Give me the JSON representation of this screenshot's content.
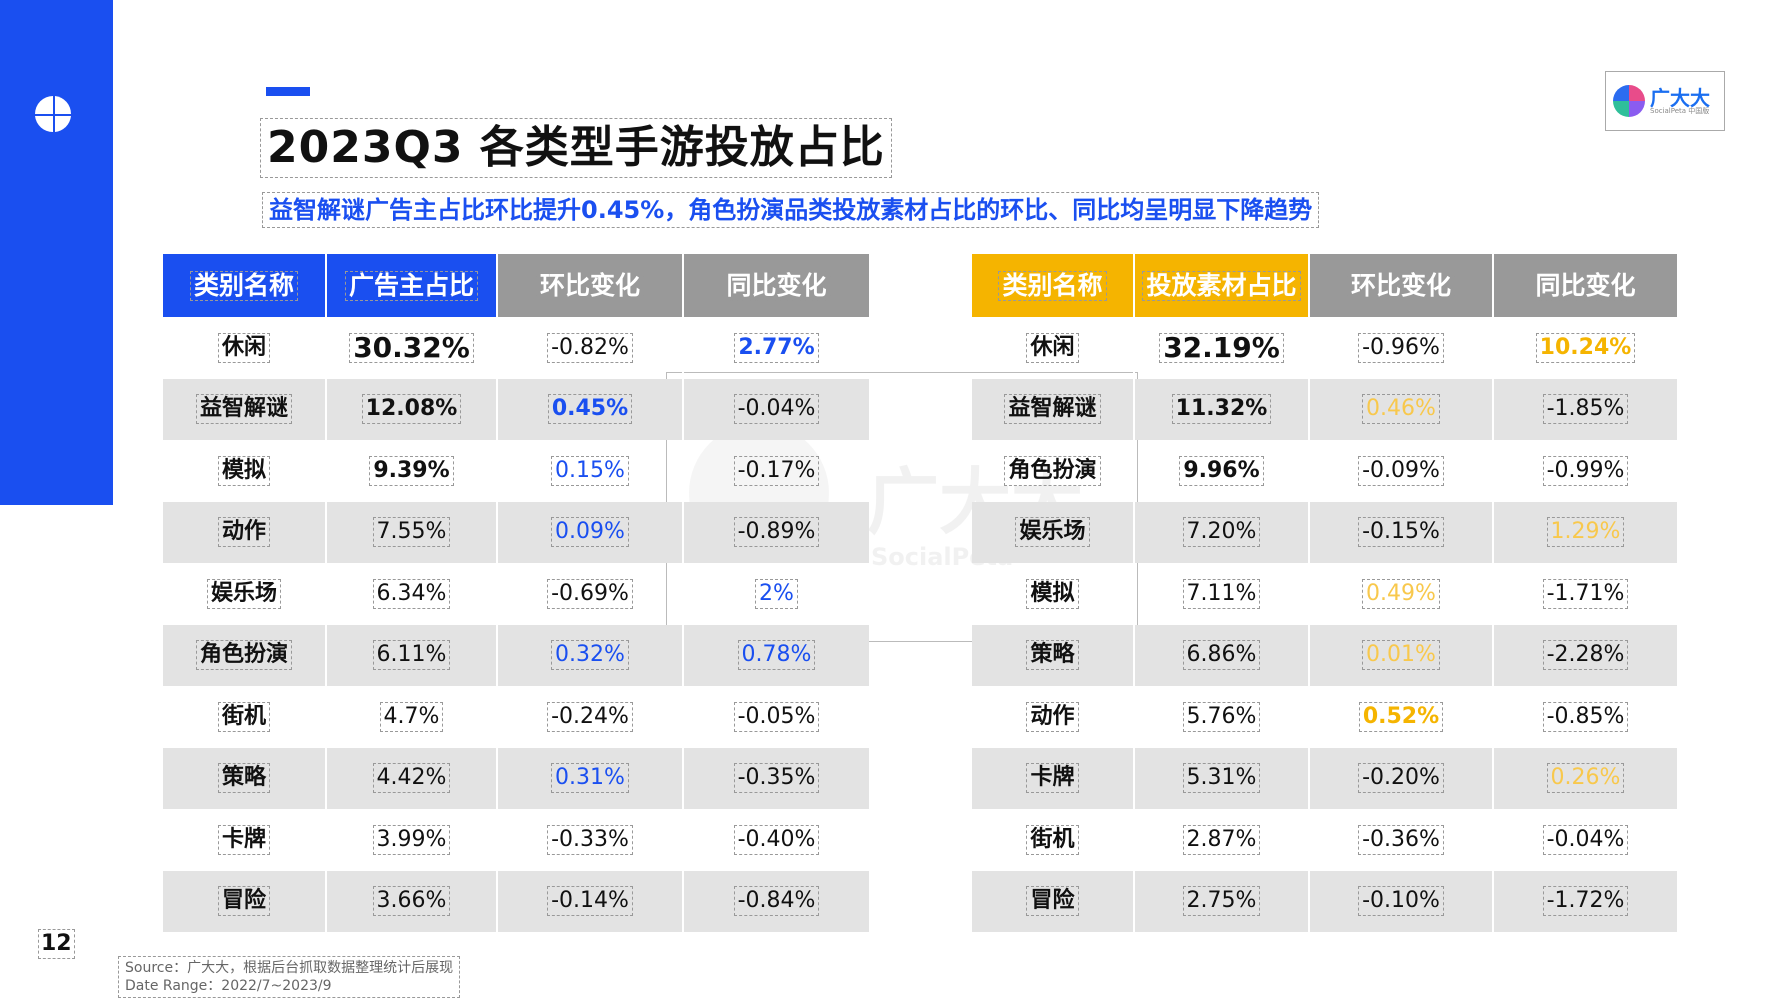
{
  "page": {
    "title": "2023Q3 各类型手游投放占比",
    "subtitle": "益智解谜广告主占比环比提升0.45%，角色扮演品类投放素材占比的环比、同比均呈明显下降趋势",
    "page_number": "12",
    "source_line1": "Source：广大大，根据后台抓取数据整理统计后展现",
    "source_line2": "Date Range：2022/7~2023/9",
    "brand_name": "广大大",
    "brand_sub": "SocialPeta 中国版",
    "watermark_text": "广大大",
    "watermark_sub": "SocialPeta"
  },
  "colors": {
    "accent_blue": "#1a4ff0",
    "accent_yellow": "#f5b400",
    "header_gray": "#999999"
  },
  "left_table": {
    "headers": [
      "类别名称",
      "广告主占比",
      "环比变化",
      "同比变化"
    ],
    "rows": [
      {
        "cat": "休闲",
        "share": "30.32%",
        "mom": "-0.82%",
        "yoy": "2.77%",
        "share_style": "big",
        "mom_style": "",
        "yoy_style": "bold blue"
      },
      {
        "cat": "益智解谜",
        "share": "12.08%",
        "mom": "0.45%",
        "yoy": "-0.04%",
        "share_style": "bold",
        "mom_style": "bold blue",
        "yoy_style": ""
      },
      {
        "cat": "模拟",
        "share": "9.39%",
        "mom": "0.15%",
        "yoy": "-0.17%",
        "share_style": "bold",
        "mom_style": "blue",
        "yoy_style": ""
      },
      {
        "cat": "动作",
        "share": "7.55%",
        "mom": "0.09%",
        "yoy": "-0.89%",
        "share_style": "",
        "mom_style": "blue",
        "yoy_style": ""
      },
      {
        "cat": "娱乐场",
        "share": "6.34%",
        "mom": "-0.69%",
        "yoy": "2%",
        "share_style": "",
        "mom_style": "",
        "yoy_style": "blue"
      },
      {
        "cat": "角色扮演",
        "share": "6.11%",
        "mom": "0.32%",
        "yoy": "0.78%",
        "share_style": "",
        "mom_style": "blue",
        "yoy_style": "blue"
      },
      {
        "cat": "街机",
        "share": "4.7%",
        "mom": "-0.24%",
        "yoy": "-0.05%",
        "share_style": "",
        "mom_style": "",
        "yoy_style": ""
      },
      {
        "cat": "策略",
        "share": "4.42%",
        "mom": "0.31%",
        "yoy": "-0.35%",
        "share_style": "",
        "mom_style": "blue",
        "yoy_style": ""
      },
      {
        "cat": "卡牌",
        "share": "3.99%",
        "mom": "-0.33%",
        "yoy": "-0.40%",
        "share_style": "",
        "mom_style": "",
        "yoy_style": ""
      },
      {
        "cat": "冒险",
        "share": "3.66%",
        "mom": "-0.14%",
        "yoy": "-0.84%",
        "share_style": "",
        "mom_style": "",
        "yoy_style": ""
      }
    ]
  },
  "right_table": {
    "headers": [
      "类别名称",
      "投放素材占比",
      "环比变化",
      "同比变化"
    ],
    "rows": [
      {
        "cat": "休闲",
        "share": "32.19%",
        "mom": "-0.96%",
        "yoy": "10.24%",
        "share_style": "big",
        "mom_style": "",
        "yoy_style": "bold yellow"
      },
      {
        "cat": "益智解谜",
        "share": "11.32%",
        "mom": "0.46%",
        "yoy": "-1.85%",
        "share_style": "bold",
        "mom_style": "yellow-light",
        "yoy_style": ""
      },
      {
        "cat": "角色扮演",
        "share": "9.96%",
        "mom": "-0.09%",
        "yoy": "-0.99%",
        "share_style": "bold",
        "mom_style": "",
        "yoy_style": ""
      },
      {
        "cat": "娱乐场",
        "share": "7.20%",
        "mom": "-0.15%",
        "yoy": "1.29%",
        "share_style": "",
        "mom_style": "",
        "yoy_style": "yellow-light"
      },
      {
        "cat": "模拟",
        "share": "7.11%",
        "mom": "0.49%",
        "yoy": "-1.71%",
        "share_style": "",
        "mom_style": "yellow-light",
        "yoy_style": ""
      },
      {
        "cat": "策略",
        "share": "6.86%",
        "mom": "0.01%",
        "yoy": "-2.28%",
        "share_style": "",
        "mom_style": "yellow-light",
        "yoy_style": ""
      },
      {
        "cat": "动作",
        "share": "5.76%",
        "mom": "0.52%",
        "yoy": "-0.85%",
        "share_style": "",
        "mom_style": "bold yellow",
        "yoy_style": ""
      },
      {
        "cat": "卡牌",
        "share": "5.31%",
        "mom": "-0.20%",
        "yoy": "0.26%",
        "share_style": "",
        "mom_style": "",
        "yoy_style": "yellow-light"
      },
      {
        "cat": "街机",
        "share": "2.87%",
        "mom": "-0.36%",
        "yoy": "-0.04%",
        "share_style": "",
        "mom_style": "",
        "yoy_style": ""
      },
      {
        "cat": "冒险",
        "share": "2.75%",
        "mom": "-0.10%",
        "yoy": "-1.72%",
        "share_style": "",
        "mom_style": "",
        "yoy_style": ""
      }
    ]
  }
}
